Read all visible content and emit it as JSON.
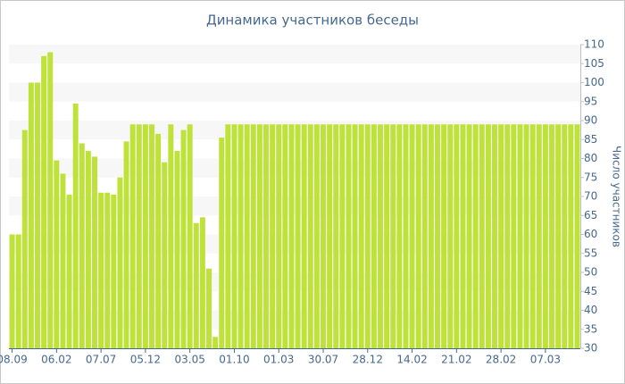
{
  "chart_data": {
    "type": "bar",
    "title": "Динамика участников беседы",
    "y_label": "Число участников",
    "categories": [
      "08.09",
      null,
      null,
      null,
      null,
      null,
      null,
      "06.02",
      null,
      null,
      null,
      null,
      null,
      null,
      "07.07",
      null,
      null,
      null,
      null,
      null,
      null,
      "05.12",
      null,
      null,
      null,
      null,
      null,
      null,
      "03.05",
      null,
      null,
      null,
      null,
      null,
      null,
      "01.10",
      null,
      null,
      null,
      null,
      null,
      null,
      "01.03",
      null,
      null,
      null,
      null,
      null,
      null,
      "30.07",
      null,
      null,
      null,
      null,
      null,
      null,
      "28.12",
      null,
      null,
      null,
      null,
      null,
      null,
      "14.02",
      null,
      null,
      null,
      null,
      null,
      null,
      "21.02",
      null,
      null,
      null,
      null,
      null,
      null,
      "28.02",
      null,
      null,
      null,
      null,
      null,
      null,
      "07.03",
      null,
      null,
      null,
      null,
      null
    ],
    "values": [
      60,
      60,
      87.5,
      100,
      100,
      107,
      108,
      79.5,
      76,
      70.5,
      94.5,
      84,
      82,
      80.5,
      71,
      71,
      70.5,
      75,
      84.5,
      89,
      89,
      89,
      89,
      86.5,
      79,
      89,
      82,
      87.5,
      89,
      63,
      64.5,
      51,
      33,
      85.5,
      89,
      89,
      89,
      89,
      89,
      89,
      89,
      89,
      89,
      89,
      89,
      89,
      89,
      89,
      89,
      89,
      89,
      89,
      89,
      89,
      89,
      89,
      89,
      89,
      89,
      89,
      89,
      89,
      89,
      89,
      89,
      89,
      89,
      89,
      89,
      89,
      89,
      89,
      89,
      89,
      89,
      89,
      89,
      89,
      89,
      89,
      89,
      89,
      89,
      89,
      89,
      89,
      89,
      89,
      89,
      89
    ],
    "color": "#bfe23a",
    "ylim": [
      30,
      110
    ],
    "yticks": [
      30,
      35,
      40,
      45,
      50,
      55,
      60,
      65,
      70,
      75,
      80,
      85,
      90,
      95,
      100,
      105,
      110
    ],
    "grid": true
  }
}
